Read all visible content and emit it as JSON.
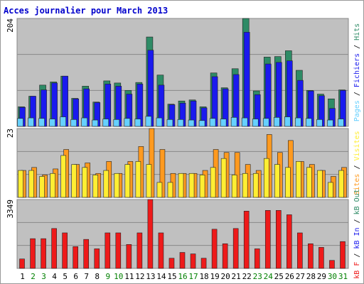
{
  "chart_data": {
    "type": "bar",
    "title": "Acces journalier pour March 2013",
    "categories": [
      "1",
      "2",
      "3",
      "4",
      "5",
      "6",
      "7",
      "8",
      "9",
      "10",
      "11",
      "12",
      "13",
      "14",
      "15",
      "16",
      "17",
      "18",
      "19",
      "20",
      "21",
      "22",
      "23",
      "24",
      "25",
      "26",
      "27",
      "28",
      "29",
      "30",
      "31"
    ],
    "category_colors": [
      "#000000",
      "#008000",
      "#008000",
      "#000000",
      "#000000",
      "#000000",
      "#000000",
      "#000000",
      "#008000",
      "#008000",
      "#000000",
      "#000000",
      "#000000",
      "#000000",
      "#000000",
      "#008000",
      "#008000",
      "#000000",
      "#000000",
      "#000000",
      "#000000",
      "#000000",
      "#008000",
      "#008000",
      "#000000",
      "#000000",
      "#000000",
      "#000000",
      "#000000",
      "#008000",
      "#008000"
    ],
    "panels": [
      {
        "type": "bar",
        "ylim": [
          0,
          204
        ],
        "yticks": [
          204
        ],
        "series": [
          {
            "name": "Pages",
            "color": "#66d0ff",
            "values": [
              15,
              16,
              15,
              14,
              18,
              13,
              16,
              12,
              14,
              13,
              15,
              14,
              19,
              16,
              13,
              13,
              12,
              11,
              15,
              14,
              17,
              16,
              14,
              15,
              17,
              18,
              16,
              15,
              13,
              12,
              14
            ]
          },
          {
            "name": "Fichiers",
            "color": "#1a1aee",
            "values": [
              36,
              57,
              69,
              82,
              95,
              52,
              71,
              45,
              80,
              76,
              61,
              80,
              144,
              78,
              41,
              44,
              48,
              35,
              94,
              71,
              98,
              178,
              60,
              118,
              121,
              124,
              87,
              67,
              58,
              34,
              68
            ]
          },
          {
            "name": "Hits",
            "color": "#2e8b66",
            "values": [
              37,
              57,
              78,
              84,
              95,
              53,
              76,
              46,
              86,
              82,
              68,
              83,
              169,
              97,
              42,
              48,
              50,
              37,
              101,
              73,
              109,
              204,
              67,
              131,
              132,
              143,
              106,
              68,
              61,
              52,
              69
            ]
          }
        ]
      },
      {
        "type": "bar",
        "ylim": [
          0,
          23
        ],
        "yticks": [
          23
        ],
        "series": [
          {
            "name": "Sites",
            "color": "#ff9a1f",
            "values": [
              9,
              10,
              7.5,
              9.5,
              16,
              11,
              11.5,
              8,
              12,
              8,
              12,
              17,
              23,
              16,
              8,
              8,
              8,
              9,
              16,
              15,
              15,
              11,
              9,
              21,
              15,
              19,
              12,
              11,
              9,
              7,
              10
            ]
          },
          {
            "name": "Visites",
            "color": "#ffee33",
            "values": [
              9,
              9,
              7,
              8,
              14,
              11,
              10,
              7.5,
              9,
              8,
              11,
              12,
              11,
              5,
              5,
              8,
              8,
              7.5,
              10,
              13,
              7.5,
              8,
              8,
              13,
              11,
              10,
              12,
              10,
              9,
              5,
              9
            ]
          }
        ]
      },
      {
        "type": "bar",
        "ylim": [
          0,
          3349
        ],
        "yticks": [
          3349
        ],
        "series": [
          {
            "name": "kB F",
            "color": "#ee1a1a",
            "values": [
              458,
              1445,
              1445,
              1939,
              1727,
              1058,
              1410,
              952,
              1727,
              1727,
              1163,
              1727,
              3349,
              1727,
              494,
              776,
              705,
              494,
              1904,
              1199,
              1939,
              2785,
              952,
              2820,
              2820,
              2609,
              1727,
              1199,
              1022,
              388,
              1304
            ]
          }
        ],
        "legend_extra": [
          {
            "name": "kB In",
            "color": "#1a1aee"
          },
          {
            "name": "kB Out",
            "color": "#2e8b66"
          }
        ]
      }
    ]
  }
}
